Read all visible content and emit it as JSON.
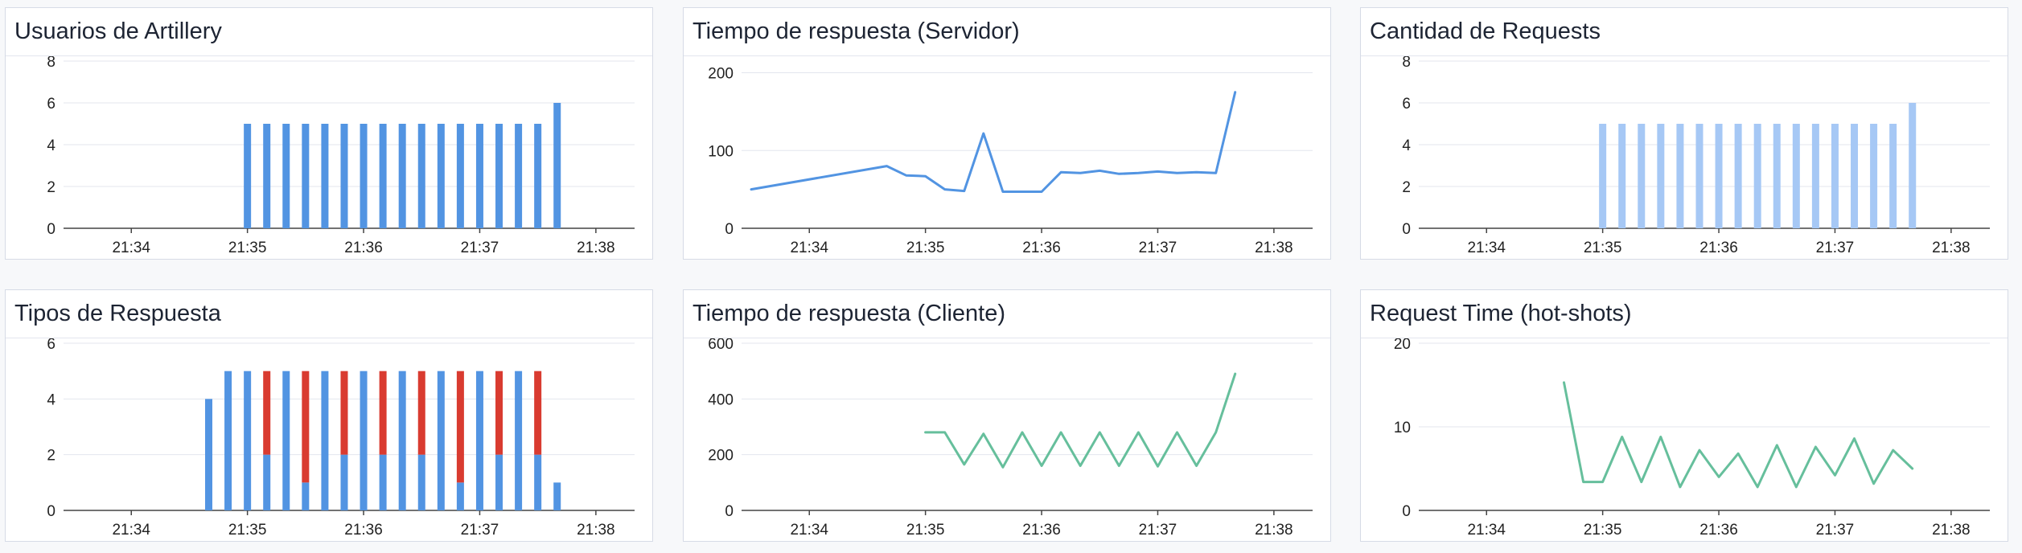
{
  "dashboard": {
    "panels": [
      {
        "id": "p1",
        "title": "Usuarios de Artillery"
      },
      {
        "id": "p2",
        "title": "Tiempo de respuesta (Servidor)"
      },
      {
        "id": "p3",
        "title": "Cantidad de Requests"
      },
      {
        "id": "p4",
        "title": "Tipos de Respuesta"
      },
      {
        "id": "p5",
        "title": "Tiempo de respuesta (Cliente)"
      },
      {
        "id": "p6",
        "title": "Request Time (hot-shots)"
      }
    ]
  },
  "colors": {
    "blue": "#5294e2",
    "light_blue": "#a6c8f5",
    "red": "#d93b30",
    "green": "#66bf9c",
    "grid": "#e3e6ee",
    "axis": "#444444"
  },
  "chart_data": [
    {
      "panel": "p1",
      "type": "bar",
      "title": "Usuarios de Artillery",
      "x_ticks": [
        "21:34",
        "21:35",
        "21:36",
        "21:37",
        "21:38"
      ],
      "y_ticks": [
        0,
        2,
        4,
        6,
        8
      ],
      "ylim": [
        0,
        8
      ],
      "xlim": [
        "21:33:25",
        "21:38:20"
      ],
      "color": "blue",
      "x": [
        "21:35:00",
        "21:35:10",
        "21:35:20",
        "21:35:30",
        "21:35:40",
        "21:35:50",
        "21:36:00",
        "21:36:10",
        "21:36:20",
        "21:36:30",
        "21:36:40",
        "21:36:50",
        "21:37:00",
        "21:37:10",
        "21:37:20",
        "21:37:30",
        "21:37:40"
      ],
      "values": [
        5,
        5,
        5,
        5,
        5,
        5,
        5,
        5,
        5,
        5,
        5,
        5,
        5,
        5,
        5,
        5,
        6
      ]
    },
    {
      "panel": "p2",
      "type": "line",
      "title": "Tiempo de respuesta (Servidor)",
      "x_ticks": [
        "21:34",
        "21:35",
        "21:36",
        "21:37",
        "21:38"
      ],
      "y_ticks": [
        0,
        100,
        200
      ],
      "ylim": [
        0,
        215
      ],
      "xlim": [
        "21:33:25",
        "21:38:20"
      ],
      "color": "blue",
      "x": [
        "21:33:30",
        "21:34:40",
        "21:34:50",
        "21:35:00",
        "21:35:10",
        "21:35:20",
        "21:35:30",
        "21:35:40",
        "21:35:50",
        "21:36:00",
        "21:36:10",
        "21:36:20",
        "21:36:30",
        "21:36:40",
        "21:36:50",
        "21:37:00",
        "21:37:10",
        "21:37:20",
        "21:37:30",
        "21:37:40"
      ],
      "values": [
        50,
        80,
        68,
        67,
        50,
        48,
        122,
        47,
        47,
        47,
        72,
        71,
        74,
        70,
        71,
        73,
        71,
        72,
        71,
        175
      ]
    },
    {
      "panel": "p3",
      "type": "bar",
      "title": "Cantidad de Requests",
      "x_ticks": [
        "21:34",
        "21:35",
        "21:36",
        "21:37",
        "21:38"
      ],
      "y_ticks": [
        0,
        2,
        4,
        6,
        8
      ],
      "ylim": [
        0,
        8
      ],
      "xlim": [
        "21:33:25",
        "21:38:20"
      ],
      "color": "light_blue",
      "x": [
        "21:35:00",
        "21:35:10",
        "21:35:20",
        "21:35:30",
        "21:35:40",
        "21:35:50",
        "21:36:00",
        "21:36:10",
        "21:36:20",
        "21:36:30",
        "21:36:40",
        "21:36:50",
        "21:37:00",
        "21:37:10",
        "21:37:20",
        "21:37:30",
        "21:37:40"
      ],
      "values": [
        5,
        5,
        5,
        5,
        5,
        5,
        5,
        5,
        5,
        5,
        5,
        5,
        5,
        5,
        5,
        5,
        6
      ]
    },
    {
      "panel": "p4",
      "type": "bar",
      "stacked": true,
      "title": "Tipos de Respuesta",
      "x_ticks": [
        "21:34",
        "21:35",
        "21:36",
        "21:37",
        "21:38"
      ],
      "y_ticks": [
        0,
        2,
        4,
        6
      ],
      "ylim": [
        0,
        6
      ],
      "xlim": [
        "21:33:25",
        "21:38:20"
      ],
      "x": [
        "21:34:40",
        "21:34:50",
        "21:35:00",
        "21:35:10",
        "21:35:20",
        "21:35:30",
        "21:35:40",
        "21:35:50",
        "21:36:00",
        "21:36:10",
        "21:36:20",
        "21:36:30",
        "21:36:40",
        "21:36:50",
        "21:37:00",
        "21:37:10",
        "21:37:20",
        "21:37:30",
        "21:37:40"
      ],
      "series": [
        {
          "color": "blue",
          "values": [
            4,
            5,
            5,
            2,
            5,
            1,
            5,
            2,
            5,
            2,
            5,
            2,
            5,
            1,
            5,
            2,
            5,
            2,
            1
          ]
        },
        {
          "color": "red",
          "values": [
            0,
            0,
            0,
            3,
            0,
            4,
            0,
            3,
            0,
            3,
            0,
            3,
            0,
            4,
            0,
            3,
            0,
            3,
            0
          ]
        }
      ]
    },
    {
      "panel": "p5",
      "type": "line",
      "title": "Tiempo de respuesta (Cliente)",
      "x_ticks": [
        "21:34",
        "21:35",
        "21:36",
        "21:37",
        "21:38"
      ],
      "y_ticks": [
        0,
        200,
        400,
        600
      ],
      "ylim": [
        0,
        600
      ],
      "xlim": [
        "21:33:25",
        "21:38:20"
      ],
      "color": "green",
      "x": [
        "21:35:00",
        "21:35:10",
        "21:35:20",
        "21:35:30",
        "21:35:40",
        "21:35:50",
        "21:36:00",
        "21:36:10",
        "21:36:20",
        "21:36:30",
        "21:36:40",
        "21:36:50",
        "21:37:00",
        "21:37:10",
        "21:37:20",
        "21:37:30",
        "21:37:40"
      ],
      "values": [
        280,
        280,
        165,
        275,
        155,
        280,
        160,
        280,
        160,
        280,
        160,
        280,
        158,
        280,
        160,
        280,
        490
      ]
    },
    {
      "panel": "p6",
      "type": "line",
      "title": "Request Time (hot-shots)",
      "x_ticks": [
        "21:34",
        "21:35",
        "21:36",
        "21:37",
        "21:38"
      ],
      "y_ticks": [
        0,
        10,
        20
      ],
      "ylim": [
        0,
        20
      ],
      "xlim": [
        "21:33:25",
        "21:38:20"
      ],
      "color": "green",
      "x": [
        "21:34:40",
        "21:34:50",
        "21:35:00",
        "21:35:10",
        "21:35:20",
        "21:35:30",
        "21:35:40",
        "21:35:50",
        "21:36:00",
        "21:36:10",
        "21:36:20",
        "21:36:30",
        "21:36:40",
        "21:36:50",
        "21:37:00",
        "21:37:10",
        "21:37:20",
        "21:37:30",
        "21:37:40"
      ],
      "values": [
        15.3,
        3.4,
        3.4,
        8.8,
        3.4,
        8.8,
        2.8,
        7.2,
        4.0,
        6.8,
        2.8,
        7.8,
        2.8,
        7.6,
        4.2,
        8.6,
        3.2,
        7.2,
        5.0
      ]
    }
  ]
}
